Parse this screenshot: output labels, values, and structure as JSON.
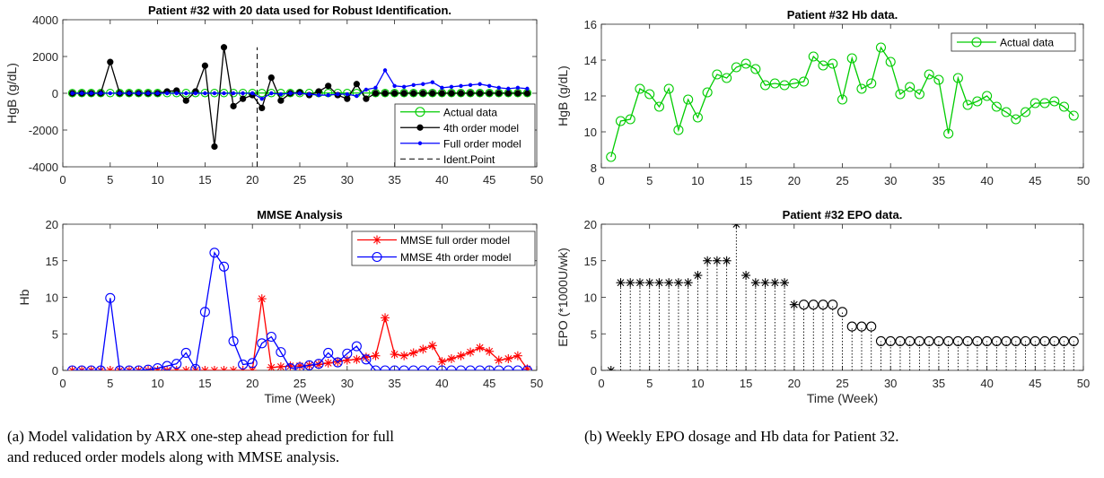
{
  "chart_data": [
    {
      "type": "line",
      "title": "Patient #32 with 20 data used for Robust Identification.",
      "xlabel": "",
      "ylabel": "HgB (g/dL)",
      "xlim": [
        0,
        50
      ],
      "ylim": [
        -4000,
        4000
      ],
      "xticks": [
        0,
        5,
        10,
        15,
        20,
        25,
        30,
        35,
        40,
        45,
        50
      ],
      "yticks": [
        -4000,
        -2000,
        0,
        2000,
        4000
      ],
      "legend": "bottom-right",
      "series": [
        {
          "name": "Actual data",
          "color": "#00cc00",
          "marker": "circle",
          "x": [
            1,
            2,
            3,
            4,
            5,
            6,
            7,
            8,
            9,
            10,
            11,
            12,
            13,
            14,
            15,
            16,
            17,
            18,
            19,
            20,
            21,
            22,
            23,
            24,
            25,
            26,
            27,
            28,
            29,
            30,
            31,
            32,
            33,
            34,
            35,
            36,
            37,
            38,
            39,
            40,
            41,
            42,
            43,
            44,
            45,
            46,
            47,
            48,
            49
          ],
          "y": [
            9,
            11,
            11,
            12,
            12,
            11,
            12,
            10,
            12,
            11,
            12,
            13,
            13,
            14,
            14,
            13,
            13,
            13,
            13,
            13,
            13,
            14,
            14,
            14,
            12,
            14,
            12,
            13,
            15,
            14,
            12,
            12,
            12,
            13,
            13,
            10,
            13,
            12,
            12,
            12,
            11,
            11,
            11,
            11,
            12,
            12,
            12,
            11,
            11
          ]
        },
        {
          "name": "4th order model",
          "color": "#000000",
          "marker": "dot",
          "x": [
            1,
            2,
            3,
            4,
            5,
            6,
            7,
            8,
            9,
            10,
            11,
            12,
            13,
            14,
            15,
            16,
            17,
            18,
            19,
            20,
            21,
            22,
            23,
            24,
            25,
            26,
            27,
            28,
            29,
            30,
            31,
            32,
            33,
            34,
            35,
            36,
            37,
            38,
            39,
            40,
            41,
            42,
            43,
            44,
            45,
            46,
            47,
            48,
            49
          ],
          "y": [
            0,
            0,
            0,
            0,
            1700,
            0,
            0,
            0,
            0,
            0,
            100,
            150,
            -400,
            100,
            1500,
            -2900,
            2500,
            -700,
            -300,
            -100,
            -800,
            850,
            -400,
            0,
            50,
            -100,
            100,
            400,
            -100,
            -300,
            500,
            -300,
            0,
            0,
            0,
            0,
            0,
            0,
            0,
            0,
            0,
            0,
            0,
            0,
            0,
            0,
            0,
            0,
            0
          ]
        },
        {
          "name": "Full order model",
          "color": "#0000ff",
          "marker": "dot",
          "x": [
            1,
            2,
            3,
            4,
            5,
            6,
            7,
            8,
            9,
            10,
            11,
            12,
            13,
            14,
            15,
            16,
            17,
            18,
            19,
            20,
            21,
            22,
            23,
            24,
            25,
            26,
            27,
            28,
            29,
            30,
            31,
            32,
            33,
            34,
            35,
            36,
            37,
            38,
            39,
            40,
            41,
            42,
            43,
            44,
            45,
            46,
            47,
            48,
            49
          ],
          "y": [
            0,
            0,
            0,
            0,
            0,
            0,
            0,
            0,
            0,
            0,
            0,
            0,
            0,
            0,
            0,
            0,
            0,
            0,
            0,
            0,
            -300,
            0,
            -50,
            0,
            0,
            -50,
            -100,
            -100,
            -50,
            -50,
            -150,
            200,
            300,
            1250,
            400,
            350,
            450,
            500,
            600,
            300,
            350,
            400,
            450,
            500,
            400,
            300,
            250,
            300,
            250
          ]
        },
        {
          "name": "Ident.Point",
          "color": "#000000",
          "dashed": true,
          "x": [
            20.5,
            20.5
          ],
          "y": [
            -4000,
            2500
          ]
        }
      ]
    },
    {
      "type": "line",
      "title": "MMSE Analysis",
      "xlabel": "Time (Week)",
      "ylabel": "Hb",
      "xlim": [
        0,
        50
      ],
      "ylim": [
        0,
        20
      ],
      "xticks": [
        0,
        5,
        10,
        15,
        20,
        25,
        30,
        35,
        40,
        45,
        50
      ],
      "yticks": [
        0,
        5,
        10,
        15,
        20
      ],
      "legend": "top-right",
      "series": [
        {
          "name": "MMSE full order model",
          "color": "#ff0000",
          "marker": "star",
          "x": [
            1,
            2,
            3,
            4,
            5,
            6,
            7,
            8,
            9,
            10,
            11,
            12,
            13,
            14,
            15,
            16,
            17,
            18,
            19,
            20,
            21,
            22,
            23,
            24,
            25,
            26,
            27,
            28,
            29,
            30,
            31,
            32,
            33,
            34,
            35,
            36,
            37,
            38,
            39,
            40,
            41,
            42,
            43,
            44,
            45,
            46,
            47,
            48,
            49
          ],
          "y": [
            0,
            0,
            0,
            0,
            0,
            0,
            0,
            0,
            0,
            0,
            0,
            0,
            0,
            0,
            0,
            0,
            0,
            0,
            0,
            0,
            9.8,
            0.4,
            0.5,
            0.6,
            0.6,
            0.7,
            0.8,
            1.0,
            1.2,
            1.4,
            1.5,
            1.8,
            2.0,
            7.2,
            2.2,
            2.0,
            2.4,
            2.9,
            3.4,
            1.2,
            1.6,
            2.0,
            2.5,
            3.1,
            2.6,
            1.4,
            1.6,
            2.0,
            0.2
          ]
        },
        {
          "name": "MMSE 4th order model",
          "color": "#0000ff",
          "marker": "circle",
          "x": [
            1,
            2,
            3,
            4,
            5,
            6,
            7,
            8,
            9,
            10,
            11,
            12,
            13,
            14,
            15,
            16,
            17,
            18,
            19,
            20,
            21,
            22,
            23,
            24,
            25,
            26,
            27,
            28,
            29,
            30,
            31,
            32,
            33,
            34,
            35,
            36,
            37,
            38,
            39,
            40,
            41,
            42,
            43,
            44,
            45,
            46,
            47,
            48,
            49
          ],
          "y": [
            0,
            0,
            0,
            0,
            9.9,
            0,
            0,
            0,
            0.1,
            0.3,
            0.6,
            0.9,
            2.4,
            0.2,
            8.0,
            16.1,
            14.2,
            4.0,
            0.8,
            1.0,
            3.7,
            4.6,
            2.5,
            0.3,
            0.4,
            0.7,
            0.9,
            2.4,
            1.1,
            2.3,
            3.3,
            1.5,
            0,
            0,
            0,
            0,
            0,
            0,
            0,
            0,
            0,
            0,
            0,
            0,
            0,
            0,
            0,
            0,
            0
          ]
        }
      ]
    },
    {
      "type": "line",
      "title": "Patient #32 Hb data.",
      "xlabel": "",
      "ylabel": "HgB (g/dL)",
      "xlim": [
        0,
        50
      ],
      "ylim": [
        8,
        16
      ],
      "xticks": [
        0,
        5,
        10,
        15,
        20,
        25,
        30,
        35,
        40,
        45,
        50
      ],
      "yticks": [
        8,
        10,
        12,
        14,
        16
      ],
      "legend": "top-right",
      "series": [
        {
          "name": "Actual data",
          "color": "#00cc00",
          "marker": "circle",
          "x": [
            1,
            2,
            3,
            4,
            5,
            6,
            7,
            8,
            9,
            10,
            11,
            12,
            13,
            14,
            15,
            16,
            17,
            18,
            19,
            20,
            21,
            22,
            23,
            24,
            25,
            26,
            27,
            28,
            29,
            30,
            31,
            32,
            33,
            34,
            35,
            36,
            37,
            38,
            39,
            40,
            41,
            42,
            43,
            44,
            45,
            46,
            47,
            48,
            49
          ],
          "y": [
            8.6,
            10.6,
            10.7,
            12.4,
            12.1,
            11.4,
            12.4,
            10.1,
            11.8,
            10.8,
            12.2,
            13.2,
            13.0,
            13.6,
            13.8,
            13.5,
            12.6,
            12.7,
            12.6,
            12.7,
            12.8,
            14.2,
            13.7,
            13.8,
            11.8,
            14.1,
            12.4,
            12.7,
            14.7,
            13.9,
            12.1,
            12.5,
            12.1,
            13.2,
            12.9,
            9.9,
            13.0,
            11.5,
            11.7,
            12.0,
            11.4,
            11.1,
            10.7,
            11.1,
            11.6,
            11.6,
            11.7,
            11.4,
            10.9
          ]
        }
      ]
    },
    {
      "type": "scatter",
      "title": "Patient #32 EPO data.",
      "xlabel": "Time (Week)",
      "ylabel": "EPO (*1000U/wk)",
      "xlim": [
        0,
        50
      ],
      "ylim": [
        0,
        20
      ],
      "xticks": [
        0,
        5,
        10,
        15,
        20,
        25,
        30,
        35,
        40,
        45,
        50
      ],
      "yticks": [
        0,
        5,
        10,
        15,
        20
      ],
      "legend": "none",
      "series": [
        {
          "name": "",
          "color": "#000000",
          "marker": "mixed",
          "stems": true,
          "x": [
            1,
            2,
            3,
            4,
            5,
            6,
            7,
            8,
            9,
            10,
            11,
            12,
            13,
            14,
            15,
            16,
            17,
            18,
            19,
            20,
            21,
            22,
            23,
            24,
            25,
            26,
            27,
            28,
            29,
            30,
            31,
            32,
            33,
            34,
            35,
            36,
            37,
            38,
            39,
            40,
            41,
            42,
            43,
            44,
            45,
            46,
            47,
            48,
            49
          ],
          "y": [
            0,
            12,
            12,
            12,
            12,
            12,
            12,
            12,
            12,
            13,
            15,
            15,
            15,
            20,
            13,
            12,
            12,
            12,
            12,
            9,
            9,
            9,
            9,
            9,
            8,
            6,
            6,
            6,
            4,
            4,
            4,
            4,
            4,
            4,
            4,
            4,
            4,
            4,
            4,
            4,
            4,
            4,
            4,
            4,
            4,
            4,
            4,
            4,
            4
          ],
          "markers": [
            "star",
            "star",
            "star",
            "star",
            "star",
            "star",
            "star",
            "star",
            "star",
            "star",
            "star",
            "star",
            "star",
            "star",
            "star",
            "star",
            "star",
            "star",
            "star",
            "star",
            "circle",
            "circle",
            "circle",
            "circle",
            "circle",
            "circle",
            "circle",
            "circle",
            "circle",
            "circle",
            "circle",
            "circle",
            "circle",
            "circle",
            "circle",
            "circle",
            "circle",
            "circle",
            "circle",
            "circle",
            "circle",
            "circle",
            "circle",
            "circle",
            "circle",
            "circle",
            "circle",
            "circle",
            "circle"
          ]
        }
      ]
    }
  ],
  "captions": {
    "a_line1": "(a)  Model validation by ARX one-step ahead prediction for full",
    "a_line2": "and reduced order models along with MMSE analysis.",
    "b": "(b)  Weekly EPO dosage and Hb data for Patient 32."
  }
}
